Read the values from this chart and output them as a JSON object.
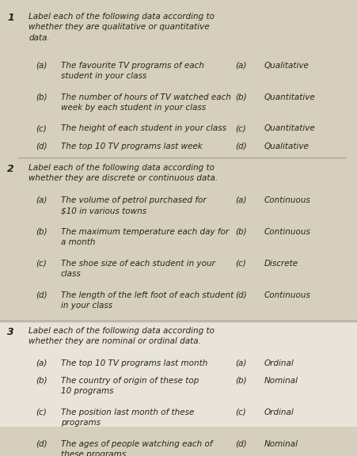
{
  "bg_color": "#d6cfbe",
  "section1": {
    "number": "1",
    "heading": "Label each of the following data according to\nwhether they are qualitative or quantitative\ndata.",
    "items": [
      {
        "letter": "(a)",
        "question": "The favourite TV programs of each\nstudent in your class",
        "ans_letter": "(a)",
        "answer": "Qualitative"
      },
      {
        "letter": "(b)",
        "question": "The number of hours of TV watched each\nweek by each student in your class",
        "ans_letter": "(b)",
        "answer": "Quantitative"
      },
      {
        "letter": "(c)",
        "question": "The height of each student in your class",
        "ans_letter": "(c)",
        "answer": "Quantitative"
      },
      {
        "letter": "(d)",
        "question": "The top 10 TV programs last week",
        "ans_letter": "(d)",
        "answer": "Qualitative"
      }
    ]
  },
  "section2": {
    "number": "2",
    "heading": "Label each of the following data according to\nwhether they are discrete or continuous data.",
    "items": [
      {
        "letter": "(a)",
        "question": "The volume of petrol purchased for\n$10 in various towns",
        "ans_letter": "(a)",
        "answer": "Continuous"
      },
      {
        "letter": "(b)",
        "question": "The maximum temperature each day for\na month",
        "ans_letter": "(b)",
        "answer": "Continuous"
      },
      {
        "letter": "(c)",
        "question": "The shoe size of each student in your\nclass",
        "ans_letter": "(c)",
        "answer": "Discrete"
      },
      {
        "letter": "(d)",
        "question": "The length of the left foot of each student\nin your class",
        "ans_letter": "(d)",
        "answer": "Continuous"
      }
    ]
  },
  "section3": {
    "number": "3",
    "heading": "Label each of the following data according to\nwhether they are nominal or ordinal data.",
    "items": [
      {
        "letter": "(a)",
        "question": "The top 10 TV programs last month",
        "ans_letter": "(a)",
        "answer": "Ordinal"
      },
      {
        "letter": "(b)",
        "question": "The country of origin of these top\n10 programs",
        "ans_letter": "(b)",
        "answer": "Nominal"
      },
      {
        "letter": "(c)",
        "question": "The position last month of these\nprograms",
        "ans_letter": "(c)",
        "answer": "Ordinal"
      },
      {
        "letter": "(d)",
        "question": "The ages of people watching each of\nthese programs",
        "ans_letter": "(d)",
        "answer": "Nominal"
      }
    ]
  },
  "font_size_heading": 7.5,
  "font_size_body": 7.5,
  "font_size_number": 9,
  "text_color": "#2a2418",
  "italic_font": "italic",
  "section3_bg": "#e8e4da"
}
